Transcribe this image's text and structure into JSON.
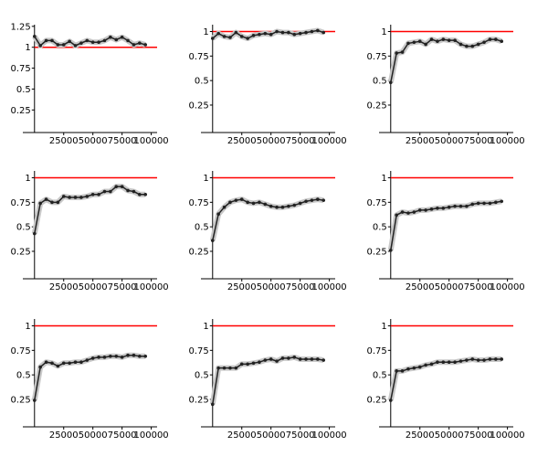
{
  "chart_data": [
    {
      "type": "line",
      "x": [
        0,
        5000,
        10000,
        15000,
        20000,
        25000,
        30000,
        35000,
        40000,
        45000,
        50000,
        55000,
        60000,
        65000,
        70000,
        75000,
        80000,
        85000,
        90000,
        95000
      ],
      "values": [
        1.13,
        1.02,
        1.08,
        1.08,
        1.03,
        1.03,
        1.07,
        1.02,
        1.05,
        1.08,
        1.06,
        1.06,
        1.08,
        1.12,
        1.09,
        1.12,
        1.08,
        1.03,
        1.05,
        1.03
      ],
      "color": "#222222",
      "reference_line": {
        "value": 1,
        "color": "#ff0000"
      },
      "xlim": [
        -10000,
        105000
      ],
      "xticks": [
        25000,
        50000,
        75000,
        100000
      ],
      "ylim": [
        -0.02,
        1.27
      ],
      "yticks": [
        0.25,
        0.5,
        0.75,
        1,
        1.25
      ]
    },
    {
      "type": "line",
      "x": [
        0,
        5000,
        10000,
        15000,
        20000,
        25000,
        30000,
        35000,
        40000,
        45000,
        50000,
        55000,
        60000,
        65000,
        70000,
        75000,
        80000,
        85000,
        90000,
        95000
      ],
      "values": [
        0.93,
        0.98,
        0.95,
        0.94,
        0.99,
        0.95,
        0.93,
        0.96,
        0.97,
        0.98,
        0.97,
        1.0,
        0.99,
        0.99,
        0.97,
        0.98,
        0.99,
        1.0,
        1.01,
        0.99
      ],
      "color": "#222222",
      "reference_line": {
        "value": 1,
        "color": "#ff0000"
      },
      "xlim": [
        -10000,
        105000
      ],
      "xticks": [
        25000,
        50000,
        75000,
        100000
      ],
      "ylim": [
        -0.03,
        1.07
      ],
      "yticks": [
        0.25,
        0.5,
        0.75,
        1
      ]
    },
    {
      "type": "line",
      "x": [
        0,
        5000,
        10000,
        15000,
        20000,
        25000,
        30000,
        35000,
        40000,
        45000,
        50000,
        55000,
        60000,
        65000,
        70000,
        75000,
        80000,
        85000,
        90000,
        95000
      ],
      "values": [
        0.48,
        0.78,
        0.79,
        0.88,
        0.89,
        0.9,
        0.87,
        0.92,
        0.9,
        0.92,
        0.91,
        0.91,
        0.87,
        0.85,
        0.85,
        0.87,
        0.89,
        0.92,
        0.92,
        0.9
      ],
      "color": "#222222",
      "reference_line": {
        "value": 1,
        "color": "#ff0000"
      },
      "xlim": [
        -10000,
        105000
      ],
      "xticks": [
        25000,
        50000,
        75000,
        100000
      ],
      "ylim": [
        -0.03,
        1.07
      ],
      "yticks": [
        0.25,
        0.5,
        0.75,
        1
      ]
    },
    {
      "type": "line",
      "x": [
        0,
        5000,
        10000,
        15000,
        20000,
        25000,
        30000,
        35000,
        40000,
        45000,
        50000,
        55000,
        60000,
        65000,
        70000,
        75000,
        80000,
        85000,
        90000,
        95000
      ],
      "values": [
        0.43,
        0.74,
        0.78,
        0.75,
        0.75,
        0.81,
        0.8,
        0.8,
        0.8,
        0.81,
        0.83,
        0.83,
        0.86,
        0.86,
        0.91,
        0.91,
        0.87,
        0.86,
        0.83,
        0.83
      ],
      "color": "#222222",
      "reference_line": {
        "value": 1,
        "color": "#ff0000"
      },
      "xlim": [
        -10000,
        105000
      ],
      "xticks": [
        25000,
        50000,
        75000,
        100000
      ],
      "ylim": [
        -0.03,
        1.07
      ],
      "yticks": [
        0.25,
        0.5,
        0.75,
        1
      ]
    },
    {
      "type": "line",
      "x": [
        0,
        5000,
        10000,
        15000,
        20000,
        25000,
        30000,
        35000,
        40000,
        45000,
        50000,
        55000,
        60000,
        65000,
        70000,
        75000,
        80000,
        85000,
        90000,
        95000
      ],
      "values": [
        0.36,
        0.63,
        0.7,
        0.75,
        0.77,
        0.78,
        0.75,
        0.74,
        0.75,
        0.73,
        0.71,
        0.7,
        0.7,
        0.71,
        0.72,
        0.74,
        0.76,
        0.77,
        0.78,
        0.77
      ],
      "color": "#222222",
      "reference_line": {
        "value": 1,
        "color": "#ff0000"
      },
      "xlim": [
        -10000,
        105000
      ],
      "xticks": [
        25000,
        50000,
        75000,
        100000
      ],
      "ylim": [
        -0.03,
        1.07
      ],
      "yticks": [
        0.25,
        0.5,
        0.75,
        1
      ]
    },
    {
      "type": "line",
      "x": [
        0,
        5000,
        10000,
        15000,
        20000,
        25000,
        30000,
        35000,
        40000,
        45000,
        50000,
        55000,
        60000,
        65000,
        70000,
        75000,
        80000,
        85000,
        90000,
        95000
      ],
      "values": [
        0.26,
        0.62,
        0.65,
        0.64,
        0.65,
        0.67,
        0.67,
        0.68,
        0.69,
        0.69,
        0.7,
        0.71,
        0.71,
        0.71,
        0.73,
        0.74,
        0.74,
        0.74,
        0.75,
        0.76
      ],
      "color": "#222222",
      "reference_line": {
        "value": 1,
        "color": "#ff0000"
      },
      "xlim": [
        -10000,
        105000
      ],
      "xticks": [
        25000,
        50000,
        75000,
        100000
      ],
      "ylim": [
        -0.03,
        1.07
      ],
      "yticks": [
        0.25,
        0.5,
        0.75,
        1
      ]
    },
    {
      "type": "line",
      "x": [
        0,
        5000,
        10000,
        15000,
        20000,
        25000,
        30000,
        35000,
        40000,
        45000,
        50000,
        55000,
        60000,
        65000,
        70000,
        75000,
        80000,
        85000,
        90000,
        95000
      ],
      "values": [
        0.24,
        0.58,
        0.63,
        0.62,
        0.59,
        0.62,
        0.62,
        0.63,
        0.63,
        0.65,
        0.67,
        0.68,
        0.68,
        0.69,
        0.69,
        0.68,
        0.7,
        0.7,
        0.69,
        0.69
      ],
      "color": "#222222",
      "reference_line": {
        "value": 1,
        "color": "#ff0000"
      },
      "xlim": [
        -10000,
        105000
      ],
      "xticks": [
        25000,
        50000,
        75000,
        100000
      ],
      "ylim": [
        -0.03,
        1.07
      ],
      "yticks": [
        0.25,
        0.5,
        0.75,
        1
      ]
    },
    {
      "type": "line",
      "x": [
        0,
        5000,
        10000,
        15000,
        20000,
        25000,
        30000,
        35000,
        40000,
        45000,
        50000,
        55000,
        60000,
        65000,
        70000,
        75000,
        80000,
        85000,
        90000,
        95000
      ],
      "values": [
        0.2,
        0.57,
        0.57,
        0.57,
        0.57,
        0.61,
        0.61,
        0.62,
        0.63,
        0.65,
        0.66,
        0.64,
        0.67,
        0.67,
        0.68,
        0.66,
        0.66,
        0.66,
        0.66,
        0.65
      ],
      "color": "#222222",
      "reference_line": {
        "value": 1,
        "color": "#ff0000"
      },
      "xlim": [
        -10000,
        105000
      ],
      "xticks": [
        25000,
        50000,
        75000,
        100000
      ],
      "ylim": [
        -0.03,
        1.07
      ],
      "yticks": [
        0.25,
        0.5,
        0.75,
        1
      ]
    },
    {
      "type": "line",
      "x": [
        0,
        5000,
        10000,
        15000,
        20000,
        25000,
        30000,
        35000,
        40000,
        45000,
        50000,
        55000,
        60000,
        65000,
        70000,
        75000,
        80000,
        85000,
        90000,
        95000
      ],
      "values": [
        0.24,
        0.54,
        0.54,
        0.56,
        0.57,
        0.58,
        0.6,
        0.61,
        0.63,
        0.63,
        0.63,
        0.63,
        0.64,
        0.65,
        0.66,
        0.65,
        0.65,
        0.66,
        0.66,
        0.66
      ],
      "color": "#222222",
      "reference_line": {
        "value": 1,
        "color": "#ff0000"
      },
      "xlim": [
        -10000,
        105000
      ],
      "xticks": [
        25000,
        50000,
        75000,
        100000
      ],
      "ylim": [
        -0.03,
        1.07
      ],
      "yticks": [
        0.25,
        0.5,
        0.75,
        1
      ]
    }
  ]
}
